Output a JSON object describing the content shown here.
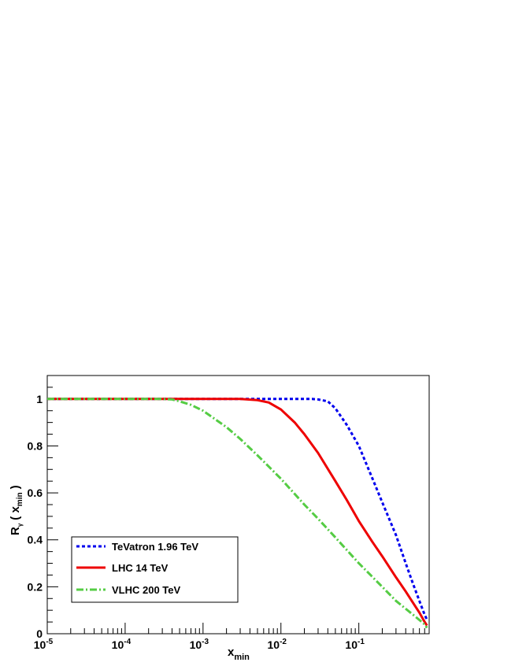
{
  "chart_data": {
    "type": "line",
    "x_scale": "log",
    "xlim": [
      1e-05,
      0.8
    ],
    "ylim": [
      0,
      1.1
    ],
    "xlabel": {
      "main": "x",
      "sub": "min"
    },
    "ylabel": {
      "main": "R",
      "sub": "γ",
      "paren_open": "( x",
      "arg_sub": "min",
      "paren_close": ")"
    },
    "x_ticks": [
      {
        "value": 1e-05,
        "base": "10",
        "exp": "-5"
      },
      {
        "value": 0.0001,
        "base": "10",
        "exp": "-4"
      },
      {
        "value": 0.001,
        "base": "10",
        "exp": "-3"
      },
      {
        "value": 0.01,
        "base": "10",
        "exp": "-2"
      },
      {
        "value": 0.1,
        "base": "10",
        "exp": "-1"
      }
    ],
    "y_ticks": [
      {
        "value": 0,
        "label": "0"
      },
      {
        "value": 0.2,
        "label": "0.2"
      },
      {
        "value": 0.4,
        "label": "0.4"
      },
      {
        "value": 0.6,
        "label": "0.6"
      },
      {
        "value": 0.8,
        "label": "0.8"
      },
      {
        "value": 1,
        "label": "1"
      }
    ],
    "legend_position": "bottom-left",
    "series": [
      {
        "name": "TeVatron 1.96 TeV",
        "color": "#0000ee",
        "style": "dotted",
        "x": [
          1e-05,
          0.0001,
          0.001,
          0.01,
          0.025,
          0.03,
          0.04,
          0.05,
          0.07,
          0.1,
          0.15,
          0.2,
          0.3,
          0.4,
          0.5,
          0.6,
          0.7,
          0.75
        ],
        "y": [
          1.0,
          1.0,
          1.0,
          1.0,
          1.0,
          0.998,
          0.99,
          0.96,
          0.89,
          0.8,
          0.66,
          0.56,
          0.42,
          0.3,
          0.21,
          0.14,
          0.08,
          0.06
        ]
      },
      {
        "name": "LHC 14 TeV",
        "color": "#ee0000",
        "style": "solid",
        "x": [
          1e-05,
          0.0001,
          0.001,
          0.003,
          0.005,
          0.007,
          0.01,
          0.015,
          0.02,
          0.03,
          0.05,
          0.07,
          0.1,
          0.15,
          0.2,
          0.3,
          0.4,
          0.5,
          0.6,
          0.7,
          0.75
        ],
        "y": [
          1.0,
          1.0,
          1.0,
          1.0,
          0.995,
          0.985,
          0.955,
          0.9,
          0.85,
          0.77,
          0.65,
          0.57,
          0.48,
          0.39,
          0.33,
          0.24,
          0.18,
          0.13,
          0.09,
          0.05,
          0.035
        ]
      },
      {
        "name": "VLHC 200 TeV",
        "color": "#55cc44",
        "style": "dashdot",
        "x": [
          1e-05,
          0.0001,
          0.0003,
          0.0004,
          0.0005,
          0.0007,
          0.001,
          0.002,
          0.003,
          0.005,
          0.01,
          0.02,
          0.03,
          0.05,
          0.1,
          0.2,
          0.3,
          0.5,
          0.7,
          0.75
        ],
        "y": [
          1.0,
          1.0,
          1.0,
          0.998,
          0.99,
          0.975,
          0.95,
          0.88,
          0.83,
          0.76,
          0.66,
          0.55,
          0.49,
          0.41,
          0.3,
          0.2,
          0.14,
          0.08,
          0.04,
          0.025
        ]
      }
    ]
  }
}
